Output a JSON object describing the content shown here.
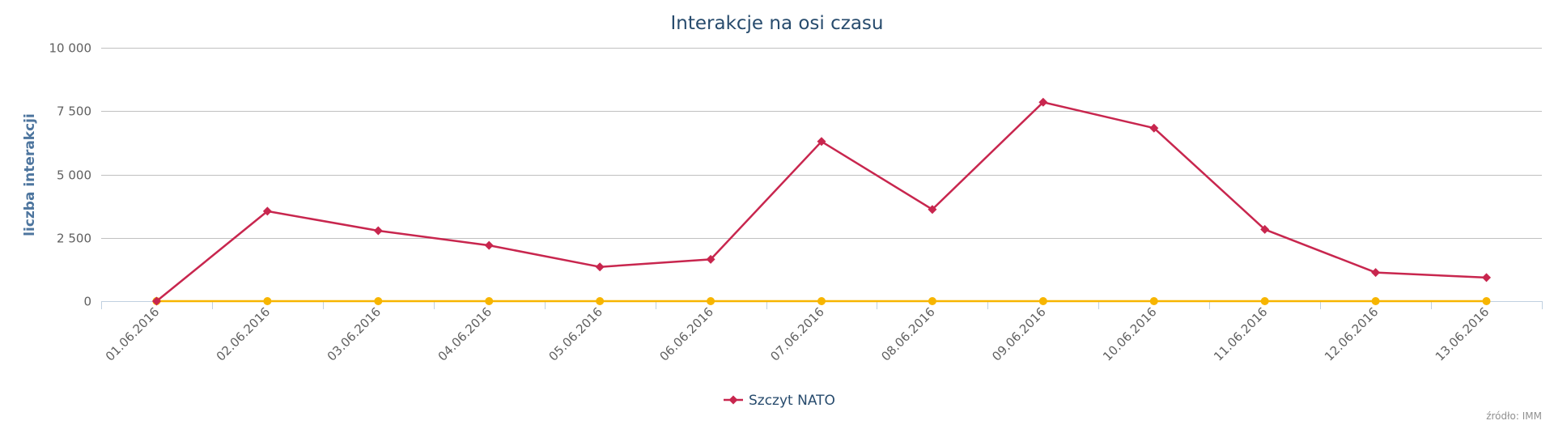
{
  "chart_data": {
    "type": "line",
    "title": "Interakcje na osi czasu",
    "ylabel": "liczba interakcji",
    "xlabel": "",
    "categories": [
      "01.06.2016",
      "02.06.2016",
      "03.06.2016",
      "04.06.2016",
      "05.06.2016",
      "06.06.2016",
      "07.06.2016",
      "08.06.2016",
      "09.06.2016",
      "10.06.2016",
      "11.06.2016",
      "12.06.2016",
      "13.06.2016"
    ],
    "ylim": [
      0,
      10000
    ],
    "yticks": [
      {
        "value": 0,
        "label": "0"
      },
      {
        "value": 2500,
        "label": "2 500"
      },
      {
        "value": 5000,
        "label": "5 000"
      },
      {
        "value": 7500,
        "label": "7 500"
      },
      {
        "value": 10000,
        "label": "10 000"
      }
    ],
    "grid": true,
    "legend_position": "bottom-center",
    "series": [
      {
        "name": "Szczyt NATO",
        "color": "#c8264e",
        "marker": "diamond",
        "values": [
          0,
          3550,
          2780,
          2200,
          1350,
          1650,
          6300,
          3620,
          7850,
          6830,
          2830,
          1130,
          930
        ]
      },
      {
        "color": "#f7b500",
        "marker": "circle",
        "values": [
          0,
          0,
          0,
          0,
          0,
          0,
          0,
          0,
          0,
          0,
          0,
          0,
          0
        ]
      }
    ],
    "credits": "źródło: IMM"
  }
}
